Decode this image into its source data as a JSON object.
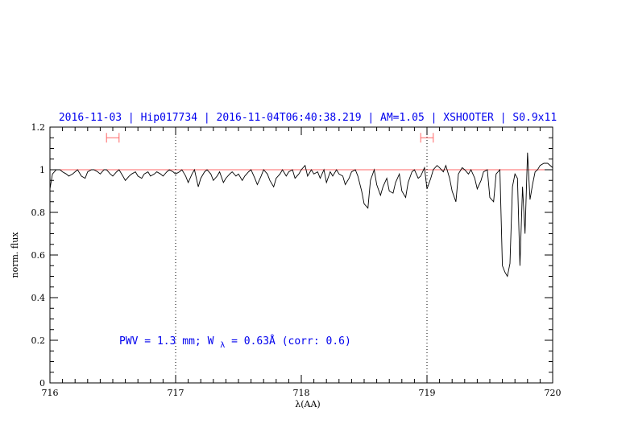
{
  "chart_data": {
    "type": "line",
    "title": "2016-11-03 | Hip017734 | 2016-11-04T06:40:38.219 | AM=1.05 | XSHOOTER | S0.9x11",
    "xlabel": "λ(AA)",
    "ylabel": "norm. flux",
    "xlim": [
      716,
      720
    ],
    "ylim": [
      0,
      1.2
    ],
    "x_ticks": [
      "716",
      "717",
      "718",
      "719",
      "720"
    ],
    "y_ticks": [
      "0",
      "0.2",
      "0.4",
      "0.6",
      "0.8",
      "1",
      "1.2"
    ],
    "grid": false,
    "reference_line": {
      "y": 1.0,
      "color": "#ff6666"
    },
    "vertical_markers": [
      717.0,
      719.0
    ],
    "range_markers": [
      {
        "x1": 716.45,
        "x2": 716.55,
        "y": 1.15,
        "color": "#ff6666"
      },
      {
        "x1": 718.95,
        "x2": 719.05,
        "y": 1.15,
        "color": "#ff6666"
      }
    ],
    "annotation": {
      "pwv_label": "PWV = 1.3 mm; W",
      "subscript": "λ",
      "tail": " = 0.63Å (corr: 0.6)"
    },
    "series": [
      {
        "color": "#000000",
        "x": [
          716.0,
          716.02,
          716.05,
          716.08,
          716.1,
          716.13,
          716.15,
          716.18,
          716.2,
          716.22,
          716.25,
          716.28,
          716.3,
          716.33,
          716.35,
          716.38,
          716.4,
          716.43,
          716.45,
          716.48,
          716.5,
          716.53,
          716.55,
          716.58,
          716.6,
          716.63,
          716.65,
          716.68,
          716.7,
          716.73,
          716.75,
          716.78,
          716.8,
          716.83,
          716.85,
          716.88,
          716.9,
          716.93,
          716.95,
          716.98,
          717.0,
          717.03,
          717.05,
          717.08,
          717.1,
          717.13,
          717.15,
          717.18,
          717.2,
          717.23,
          717.25,
          717.28,
          717.3,
          717.33,
          717.35,
          717.38,
          717.4,
          717.43,
          717.45,
          717.48,
          717.5,
          717.53,
          717.55,
          717.58,
          717.6,
          717.63,
          717.65,
          717.68,
          717.7,
          717.73,
          717.75,
          717.78,
          717.8,
          717.83,
          717.85,
          717.88,
          717.9,
          717.93,
          717.95,
          717.98,
          718.0,
          718.03,
          718.05,
          718.08,
          718.1,
          718.13,
          718.15,
          718.18,
          718.2,
          718.23,
          718.25,
          718.28,
          718.3,
          718.33,
          718.35,
          718.38,
          718.4,
          718.43,
          718.45,
          718.48,
          718.5,
          718.53,
          718.55,
          718.58,
          718.6,
          718.63,
          718.65,
          718.68,
          718.7,
          718.73,
          718.75,
          718.78,
          718.8,
          718.83,
          718.85,
          718.88,
          718.9,
          718.93,
          718.95,
          718.98,
          719.0,
          719.03,
          719.05,
          719.08,
          719.1,
          719.13,
          719.15,
          719.18,
          719.2,
          719.23,
          719.25,
          719.28,
          719.3,
          719.33,
          719.35,
          719.38,
          719.4,
          719.43,
          719.45,
          719.48,
          719.5,
          719.53,
          719.55,
          719.58,
          719.6,
          719.62,
          719.64,
          719.66,
          719.68,
          719.7,
          719.72,
          719.74,
          719.76,
          719.78,
          719.8,
          719.82,
          719.84,
          719.86,
          719.88,
          719.9,
          719.93,
          719.96,
          720.0
        ],
        "y": [
          0.91,
          0.98,
          1.0,
          1.0,
          0.99,
          0.98,
          0.97,
          0.98,
          0.99,
          1.0,
          0.97,
          0.96,
          0.99,
          1.0,
          1.0,
          0.99,
          0.98,
          1.0,
          1.0,
          0.98,
          0.97,
          0.99,
          1.0,
          0.97,
          0.95,
          0.97,
          0.98,
          0.99,
          0.97,
          0.96,
          0.98,
          0.99,
          0.97,
          0.98,
          0.99,
          0.98,
          0.97,
          0.99,
          1.0,
          0.99,
          0.98,
          0.99,
          1.0,
          0.97,
          0.94,
          0.98,
          1.0,
          0.92,
          0.96,
          0.99,
          1.0,
          0.98,
          0.95,
          0.97,
          0.99,
          0.94,
          0.96,
          0.98,
          0.99,
          0.97,
          0.98,
          0.95,
          0.97,
          0.99,
          1.0,
          0.96,
          0.93,
          0.97,
          1.0,
          0.98,
          0.95,
          0.92,
          0.96,
          0.98,
          1.0,
          0.97,
          0.99,
          1.0,
          0.96,
          0.98,
          1.0,
          1.02,
          0.97,
          1.0,
          0.98,
          0.99,
          0.96,
          1.0,
          0.94,
          0.99,
          0.97,
          1.0,
          0.98,
          0.97,
          0.93,
          0.96,
          0.99,
          1.0,
          0.97,
          0.9,
          0.84,
          0.82,
          0.95,
          1.0,
          0.93,
          0.88,
          0.92,
          0.96,
          0.9,
          0.89,
          0.94,
          0.98,
          0.9,
          0.87,
          0.94,
          0.99,
          1.0,
          0.96,
          0.97,
          1.01,
          0.91,
          0.96,
          1.0,
          1.02,
          1.01,
          0.99,
          1.02,
          0.96,
          0.9,
          0.85,
          0.98,
          1.01,
          1.0,
          0.98,
          1.0,
          0.96,
          0.91,
          0.95,
          0.99,
          1.0,
          0.87,
          0.85,
          0.98,
          1.0,
          0.55,
          0.52,
          0.5,
          0.56,
          0.92,
          0.98,
          0.96,
          0.55,
          0.92,
          0.7,
          1.08,
          0.86,
          0.93,
          0.99,
          1.0,
          1.02,
          1.03,
          1.03,
          1.01
        ]
      }
    ]
  }
}
